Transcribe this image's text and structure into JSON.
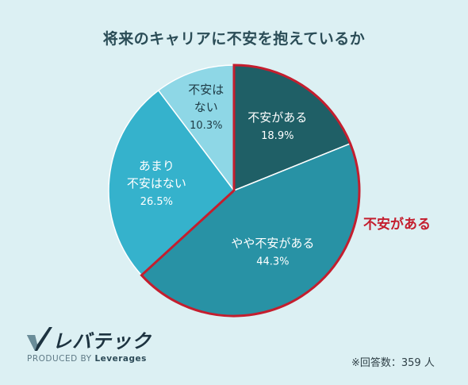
{
  "title": "将来のキャリアに不安を抱えているか",
  "bracket_label": "不安がある",
  "logo": {
    "wordmark": "レバテック",
    "produced_prefix": "PRODUCED BY",
    "produced_brand": "Leverages"
  },
  "footnote": "※回答数：359 人",
  "chart_data": {
    "type": "pie",
    "title": "将来のキャリアに不安を抱えているか",
    "start": "12 o'clock, clockwise",
    "slices": [
      {
        "label_lines": [
          "不安がある"
        ],
        "value": 18.9,
        "display": "18.9%",
        "color": "#1f5f66",
        "text_color": "#ffffff"
      },
      {
        "label_lines": [
          "やや不安がある"
        ],
        "value": 44.3,
        "display": "44.3%",
        "color": "#2892a5",
        "text_color": "#ffffff"
      },
      {
        "label_lines": [
          "あまり",
          "不安はない"
        ],
        "value": 26.5,
        "display": "26.5%",
        "color": "#35b2cc",
        "text_color": "#ffffff"
      },
      {
        "label_lines": [
          "不安は",
          "ない"
        ],
        "value": 10.3,
        "display": "10.3%",
        "color": "#8ed7e6",
        "text_color": "#1e3a44"
      }
    ],
    "highlight": {
      "slices": [
        0,
        1
      ],
      "label": "不安がある",
      "color": "#c41e2e"
    }
  }
}
